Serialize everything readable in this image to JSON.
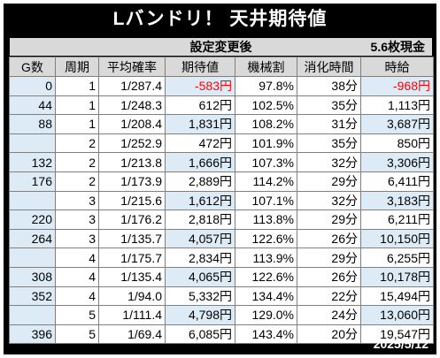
{
  "title": "Lバンドリ！ 天井期待値",
  "subheader": {
    "setting": "設定変更後",
    "rate": "5.6枚現金"
  },
  "columns": [
    "G数",
    "周期",
    "平均確率",
    "期待値",
    "機械割",
    "消化時間",
    "時給"
  ],
  "rows": [
    {
      "g": "0",
      "cycle": "1",
      "prob": "1/287.4",
      "ev": "-583円",
      "payout": "97.8%",
      "time": "38分",
      "hourly": "-968円",
      "ev_negative": true,
      "hourly_negative": true
    },
    {
      "g": "44",
      "cycle": "1",
      "prob": "1/248.3",
      "ev": "612円",
      "payout": "102.5%",
      "time": "35分",
      "hourly": "1,113円"
    },
    {
      "g": "88",
      "cycle": "1",
      "prob": "1/208.4",
      "ev": "1,831円",
      "payout": "108.2%",
      "time": "31分",
      "hourly": "3,687円"
    },
    {
      "g": "",
      "cycle": "2",
      "prob": "1/252.9",
      "ev": "472円",
      "payout": "101.9%",
      "time": "35分",
      "hourly": "850円"
    },
    {
      "g": "132",
      "cycle": "2",
      "prob": "1/213.8",
      "ev": "1,666円",
      "payout": "107.3%",
      "time": "32分",
      "hourly": "3,306円"
    },
    {
      "g": "176",
      "cycle": "2",
      "prob": "1/173.9",
      "ev": "2,889円",
      "payout": "114.2%",
      "time": "29分",
      "hourly": "6,411円"
    },
    {
      "g": "",
      "cycle": "3",
      "prob": "1/215.6",
      "ev": "1,612円",
      "payout": "107.1%",
      "time": "32分",
      "hourly": "3,183円"
    },
    {
      "g": "220",
      "cycle": "3",
      "prob": "1/176.2",
      "ev": "2,818円",
      "payout": "113.8%",
      "time": "29分",
      "hourly": "6,211円"
    },
    {
      "g": "264",
      "cycle": "3",
      "prob": "1/135.7",
      "ev": "4,057円",
      "payout": "122.6%",
      "time": "26分",
      "hourly": "10,150円"
    },
    {
      "g": "",
      "cycle": "4",
      "prob": "1/175.7",
      "ev": "2,834円",
      "payout": "113.9%",
      "time": "29分",
      "hourly": "6,255円"
    },
    {
      "g": "308",
      "cycle": "4",
      "prob": "1/135.4",
      "ev": "4,065円",
      "payout": "122.6%",
      "time": "26分",
      "hourly": "10,178円"
    },
    {
      "g": "352",
      "cycle": "4",
      "prob": "1/94.0",
      "ev": "5,332円",
      "payout": "134.4%",
      "time": "22分",
      "hourly": "15,494円"
    },
    {
      "g": "",
      "cycle": "5",
      "prob": "1/111.4",
      "ev": "4,798円",
      "payout": "129.0%",
      "time": "24分",
      "hourly": "13,060円"
    },
    {
      "g": "396",
      "cycle": "5",
      "prob": "1/69.4",
      "ev": "6,085円",
      "payout": "143.4%",
      "time": "20分",
      "hourly": "19,547円"
    }
  ],
  "footer_date": "2025/5/12",
  "colors": {
    "highlight": "#ddebf7",
    "header": "#d9d9d9",
    "negative": "#ff0000"
  }
}
